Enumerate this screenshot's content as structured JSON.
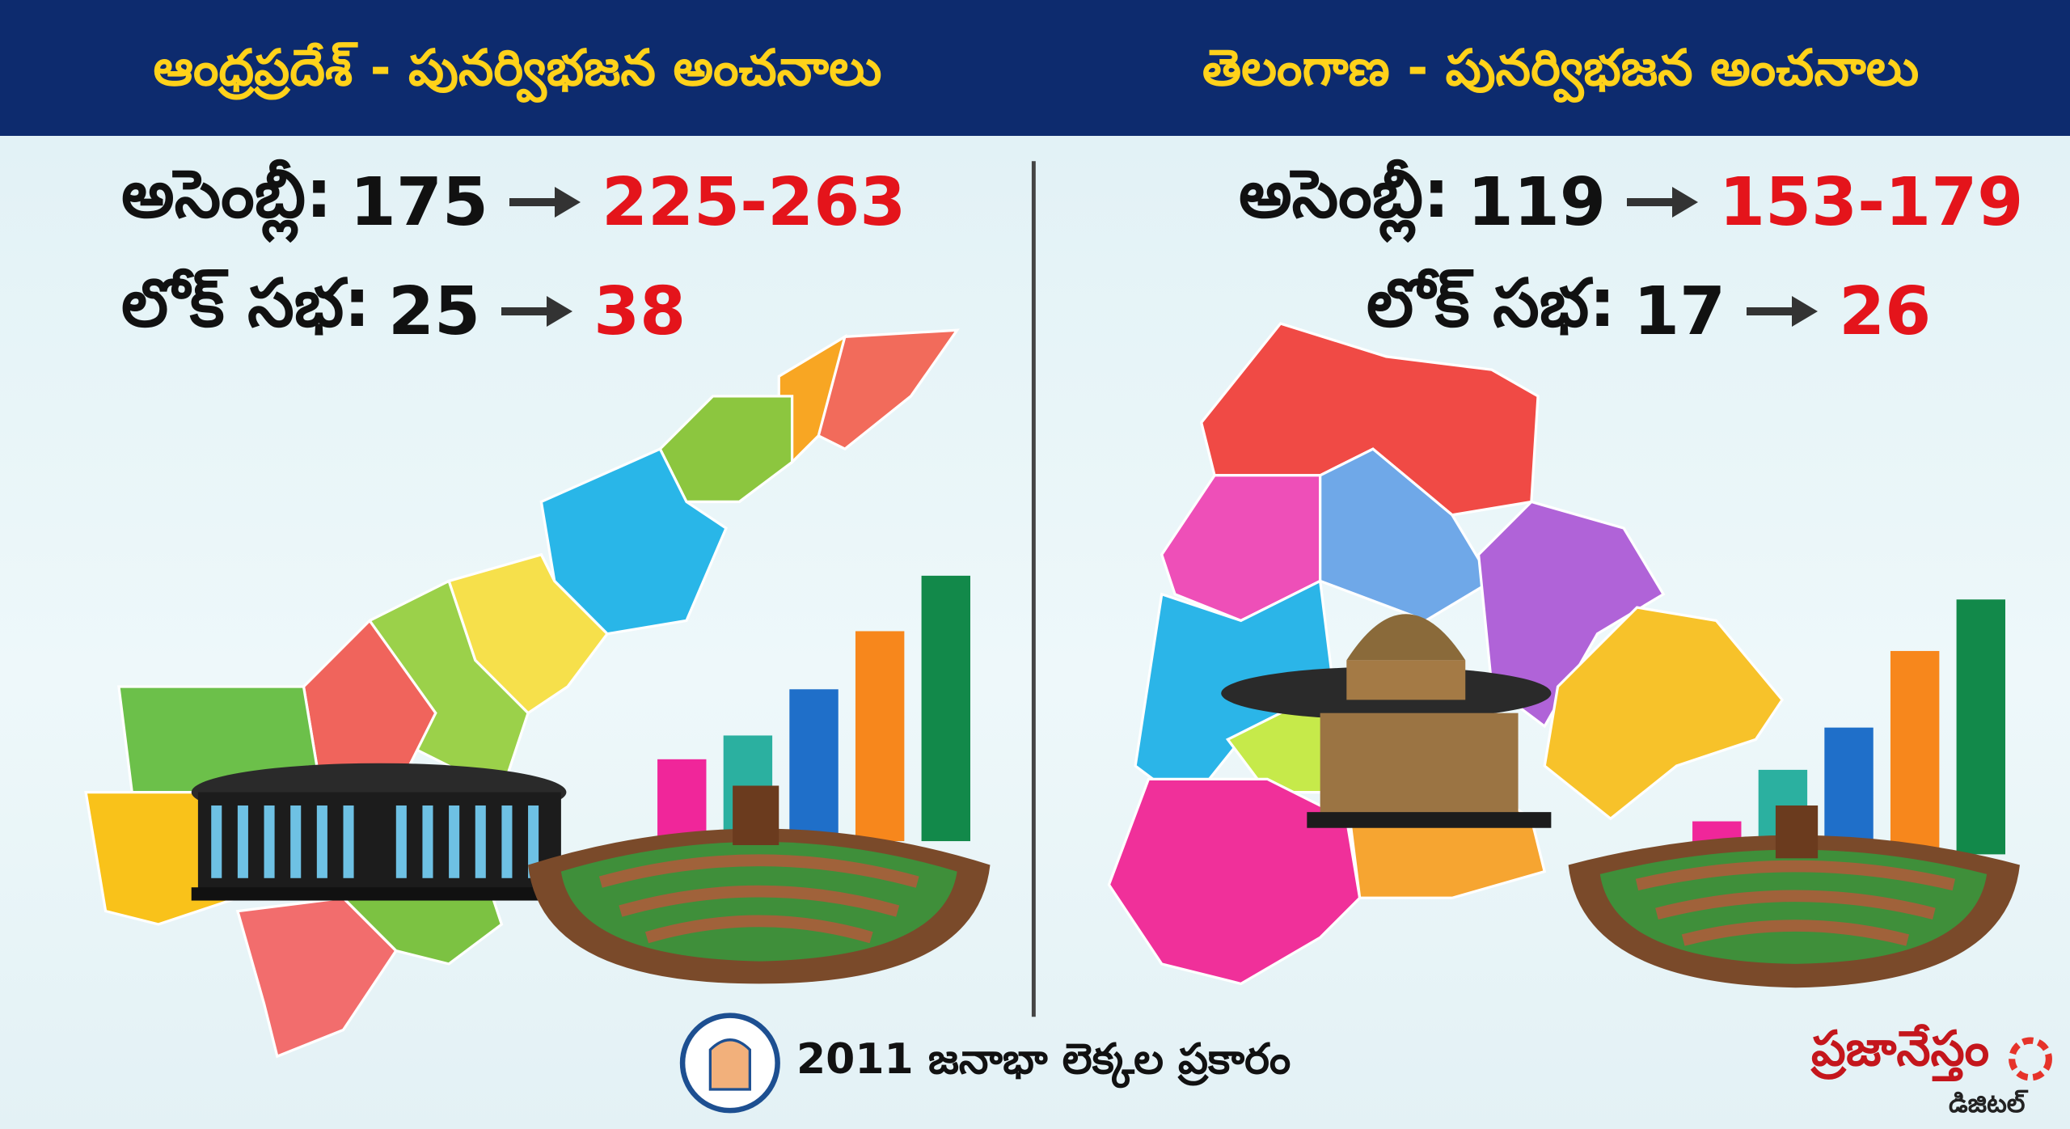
{
  "header": {
    "left_title": "ఆంధ్రప్రదేశ్ - పునర్విభజన అంచనాలు",
    "right_title": "తెలంగాణ - పునర్విభజన అంచనాలు"
  },
  "panels": [
    {
      "assembly": {
        "label": "అసెంబ్లీ:",
        "current": "175",
        "projected": "225-263"
      },
      "lok_sabha": {
        "label": "లోక్ సభ:",
        "current": "25",
        "projected": "38"
      }
    },
    {
      "assembly": {
        "label": "అసెంబ్లీ:",
        "current": "119",
        "projected": "153-179"
      },
      "lok_sabha": {
        "label": "లోక్ సభ:",
        "current": "17",
        "projected": "26"
      }
    }
  ],
  "footer": {
    "text": "2011 జనాభా లెక్కల ప్రకారం"
  },
  "logo": {
    "name": "ప్రజానేస్తం",
    "tagline": "డిజిటల్"
  }
}
